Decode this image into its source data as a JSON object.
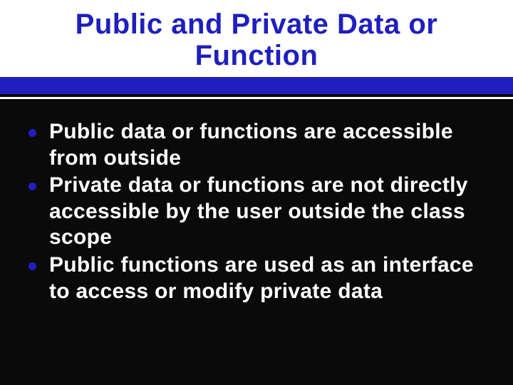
{
  "slide": {
    "background_color": "#0a0a0a",
    "header": {
      "background_color": "#ffffff",
      "title": "Public and Private Data or Function",
      "title_color": "#1f1fbe",
      "title_fontsize": 40
    },
    "divider": {
      "band_color": "#1f1fbe",
      "band_height": 24,
      "line_color": "#ffffff",
      "line_height": 3,
      "line_gap": 4
    },
    "body": {
      "text_color": "#ffffff",
      "bullet_color": "#1f1fbe",
      "bullet_size": 11,
      "fontsize": 30,
      "items": [
        {
          "text": "Public data or functions are accessible from outside"
        },
        {
          "text": "Private data or functions are not directly accessible by the user outside the class scope"
        },
        {
          "text": "Public functions are used as an interface to access or modify private data"
        }
      ]
    }
  }
}
